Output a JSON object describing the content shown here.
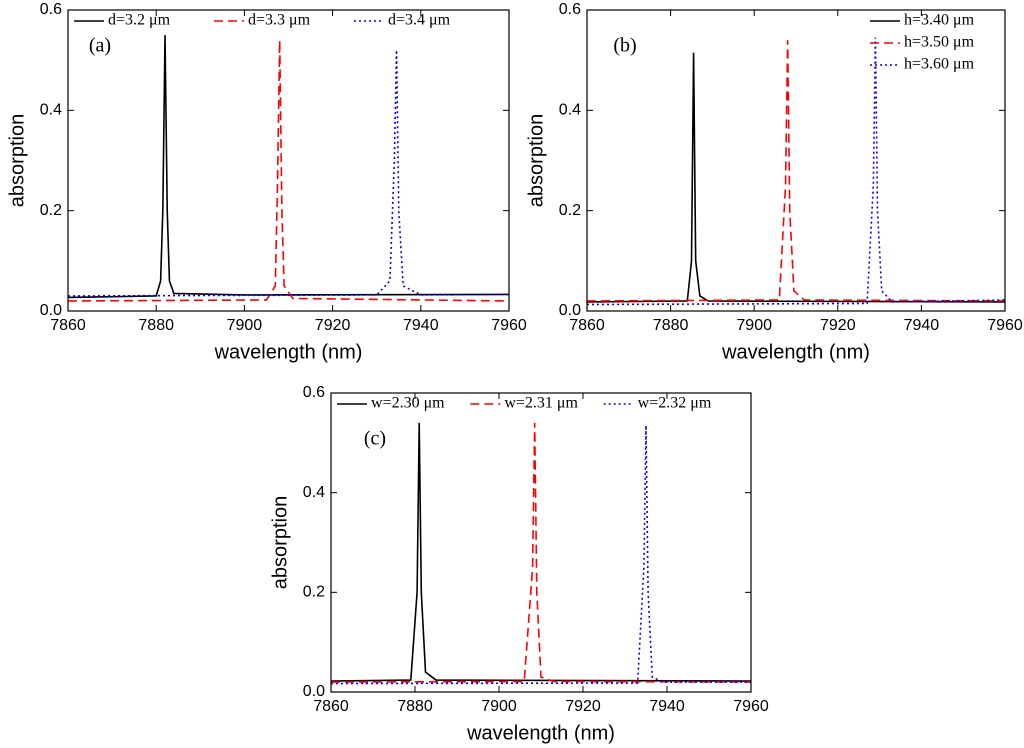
{
  "chart_data": [
    {
      "type": "line",
      "label": "(a)",
      "xlabel": "wavelength (nm)",
      "ylabel": "absorption",
      "legend": "top",
      "xlim": [
        7860,
        7960
      ],
      "xticks": [
        7860,
        7880,
        7900,
        7920,
        7940,
        7960
      ],
      "ylim": [
        0,
        0.6
      ],
      "yticks": [
        {
          "value": 0,
          "label": "0.0"
        },
        0.2,
        0.4,
        0.6
      ],
      "series": [
        {
          "name": "d=3.2 μm",
          "color": "#000000",
          "dash": "solid",
          "x": [
            7860,
            7880,
            7881,
            7881.5,
            7882,
            7882.5,
            7883,
            7884,
            7900,
            7960
          ],
          "values": [
            0.027,
            0.03,
            0.06,
            0.2,
            0.55,
            0.2,
            0.06,
            0.035,
            0.032,
            0.033
          ]
        },
        {
          "name": "d=3.3 μm",
          "color": "#ff0000",
          "dash": "dashed",
          "x": [
            7860,
            7905,
            7907,
            7907.5,
            7908,
            7908.5,
            7909,
            7911,
            7960
          ],
          "values": [
            0.02,
            0.022,
            0.05,
            0.25,
            0.54,
            0.2,
            0.05,
            0.025,
            0.02
          ]
        },
        {
          "name": "d=3.4 μm",
          "color": "#0000ff",
          "dash": "dotted",
          "x": [
            7860,
            7930,
            7933,
            7934,
            7934.5,
            7935,
            7936,
            7940,
            7960
          ],
          "values": [
            0.03,
            0.032,
            0.06,
            0.3,
            0.52,
            0.2,
            0.05,
            0.032,
            0.033
          ]
        }
      ]
    },
    {
      "type": "line",
      "label": "(b)",
      "xlabel": "wavelength (nm)",
      "ylabel": "absorption",
      "legend": "upper right",
      "xlim": [
        7860,
        7960
      ],
      "xticks": [
        7860,
        7880,
        7900,
        7920,
        7940,
        7960
      ],
      "ylim": [
        0,
        0.6
      ],
      "yticks": [
        {
          "value": 0,
          "label": "0.0"
        },
        0.2,
        0.4,
        0.6
      ],
      "series": [
        {
          "name": "h=3.40 μm",
          "color": "#000000",
          "dash": "solid",
          "x": [
            7860,
            7884,
            7885,
            7885.5,
            7886,
            7887,
            7889,
            7960
          ],
          "values": [
            0.018,
            0.02,
            0.1,
            0.515,
            0.1,
            0.03,
            0.02,
            0.018
          ]
        },
        {
          "name": "h=3.50 μm",
          "color": "#ff0000",
          "dash": "dashed",
          "x": [
            7860,
            7906,
            7907.5,
            7908,
            7908.5,
            7909.5,
            7912,
            7960
          ],
          "values": [
            0.02,
            0.022,
            0.25,
            0.54,
            0.2,
            0.04,
            0.022,
            0.02
          ]
        },
        {
          "name": "h=3.60 μm",
          "color": "#0000ff",
          "dash": "dotted",
          "x": [
            7860,
            7927,
            7928.5,
            7929,
            7929.5,
            7930.5,
            7933,
            7960
          ],
          "values": [
            0.013,
            0.015,
            0.25,
            0.545,
            0.2,
            0.04,
            0.018,
            0.022
          ]
        }
      ]
    },
    {
      "type": "line",
      "label": "(c)",
      "xlabel": "wavelength (nm)",
      "ylabel": "absorption",
      "legend": "top",
      "xlim": [
        7860,
        7960
      ],
      "xticks": [
        7860,
        7880,
        7900,
        7920,
        7940,
        7960
      ],
      "ylim": [
        0,
        0.6
      ],
      "yticks": [
        {
          "value": 0,
          "label": "0.0"
        },
        0.2,
        0.4,
        0.6
      ],
      "series": [
        {
          "name": "w=2.30 μm",
          "color": "#000000",
          "dash": "solid",
          "x": [
            7860,
            7879,
            7880.5,
            7881,
            7881.5,
            7882.5,
            7885,
            7960
          ],
          "values": [
            0.022,
            0.024,
            0.2,
            0.54,
            0.2,
            0.04,
            0.024,
            0.022
          ]
        },
        {
          "name": "w=2.31 μm",
          "color": "#ff0000",
          "dash": "dashed",
          "x": [
            7860,
            7906,
            7908,
            7908.5,
            7909,
            7910,
            7913,
            7960
          ],
          "values": [
            0.02,
            0.021,
            0.25,
            0.54,
            0.2,
            0.03,
            0.021,
            0.02
          ]
        },
        {
          "name": "w=2.32 μm",
          "color": "#0000ff",
          "dash": "dotted",
          "x": [
            7860,
            7933,
            7934.5,
            7935,
            7935.5,
            7936.5,
            7939,
            7960
          ],
          "values": [
            0.017,
            0.018,
            0.25,
            0.535,
            0.2,
            0.03,
            0.02,
            0.02
          ]
        }
      ]
    }
  ]
}
